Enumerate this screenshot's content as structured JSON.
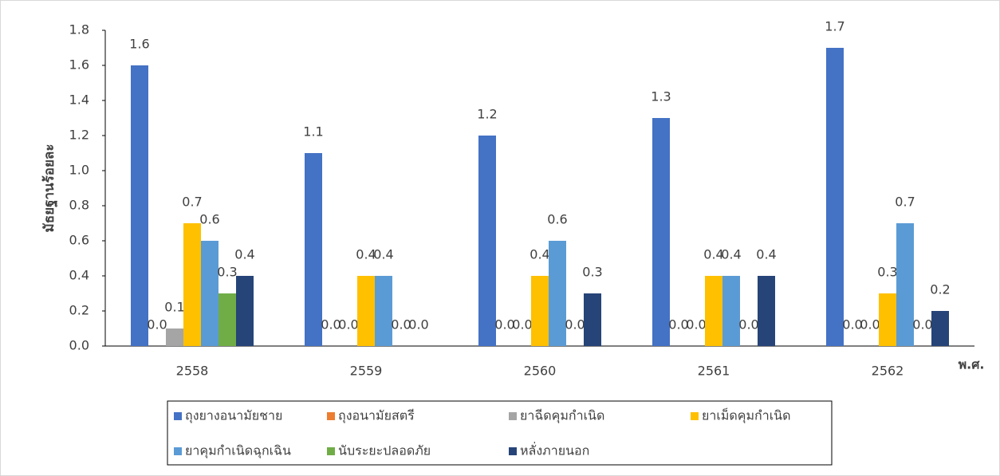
{
  "chart_data": {
    "type": "bar",
    "y_label": "มัธยฐานร้อยละ",
    "x_label": "พ.ศ.",
    "categories": [
      "2558",
      "2559",
      "2560",
      "2561",
      "2562"
    ],
    "series": [
      {
        "name": "ถุงยางอนามัยชาย",
        "color": "#4472c4",
        "values": [
          1.6,
          1.1,
          1.2,
          1.3,
          1.7
        ],
        "value_labels": [
          "1.6",
          "1.1",
          "1.2",
          "1.3",
          "1.7"
        ]
      },
      {
        "name": "ถุงอนามัยสตรี",
        "color": "#ed7d31",
        "values": [
          0,
          0,
          0,
          0,
          0
        ],
        "value_labels": [
          "0.0",
          "0.0",
          "0.0",
          "0.0",
          "0.0"
        ]
      },
      {
        "name": "ยาฉีดคุมกำเนิด",
        "color": "#a5a5a5",
        "values": [
          0.1,
          0,
          0,
          0,
          0
        ],
        "value_labels": [
          "0.1",
          "0.0",
          "0.0",
          "0.0",
          "0.0"
        ]
      },
      {
        "name": "ยาเม็ดคุมกำเนิด",
        "color": "#ffc000",
        "values": [
          0.7,
          0.4,
          0.4,
          0.4,
          0.3
        ],
        "value_labels": [
          "0.7",
          "0.4",
          "0.4",
          "0.4",
          "0.3"
        ]
      },
      {
        "name": "ยาคุมกำเนิดฉุกเฉิน",
        "color": "#5b9bd5",
        "values": [
          0.6,
          0.4,
          0.6,
          0.4,
          0.7
        ],
        "value_labels": [
          "0.6",
          "0.4",
          "0.6",
          "0.4",
          "0.7"
        ]
      },
      {
        "name": "นับระยะปลอดภัย",
        "color": "#70ad47",
        "values": [
          0.3,
          0,
          0,
          0,
          0
        ],
        "value_labels": [
          "0.3",
          "0.0",
          "0.0",
          "0.0",
          "0.0"
        ]
      },
      {
        "name": "หลั่งภายนอก",
        "color": "#264478",
        "values": [
          0.4,
          0,
          0.3,
          0.4,
          0.2
        ],
        "value_labels": [
          "0.4",
          "0.0",
          "0.3",
          "0.4",
          "0.2"
        ]
      }
    ],
    "ylim": [
      0,
      1.8
    ],
    "yticks": [
      {
        "value": 0,
        "label": "0.0"
      },
      0.2,
      0.4,
      0.6,
      0.8,
      {
        "value": 1,
        "label": "1.0"
      },
      1.2,
      1.4,
      1.6,
      1.8
    ],
    "legend": "bottom"
  }
}
